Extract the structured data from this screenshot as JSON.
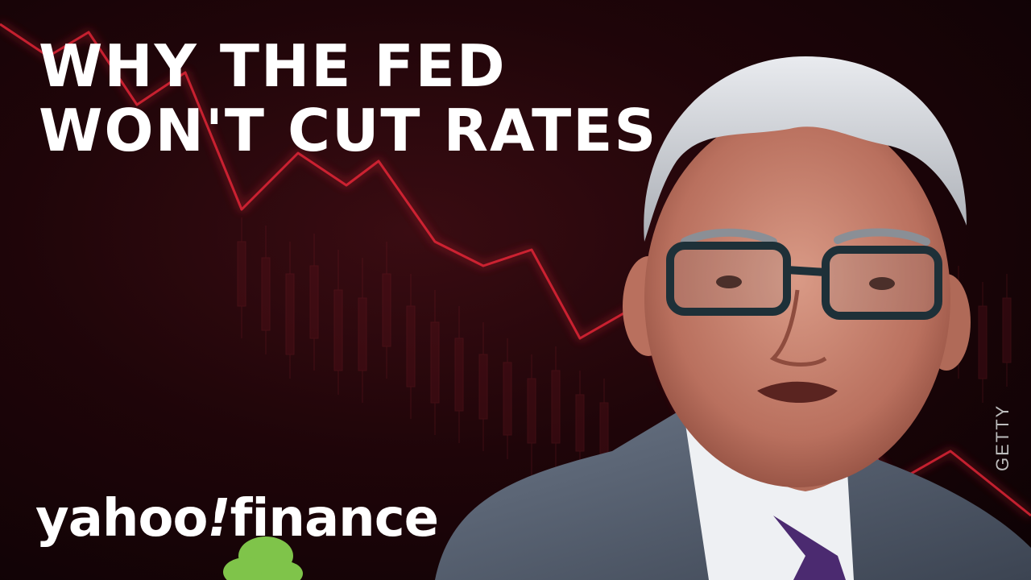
{
  "thumbnail": {
    "headline": [
      "WHY THE FED",
      "WON'T CUT RATES"
    ],
    "brand": {
      "name": "yahoo",
      "mark": "!",
      "product": "finance"
    },
    "photo_credit": "GETTY"
  },
  "colors": {
    "background": "#1f0509",
    "trend_line": "#ff2a3c",
    "text": "#ffffff",
    "credit": "#bdbdbd"
  },
  "icons": [
    "downtrend-chart-graphic",
    "speaker-portrait-photo"
  ]
}
